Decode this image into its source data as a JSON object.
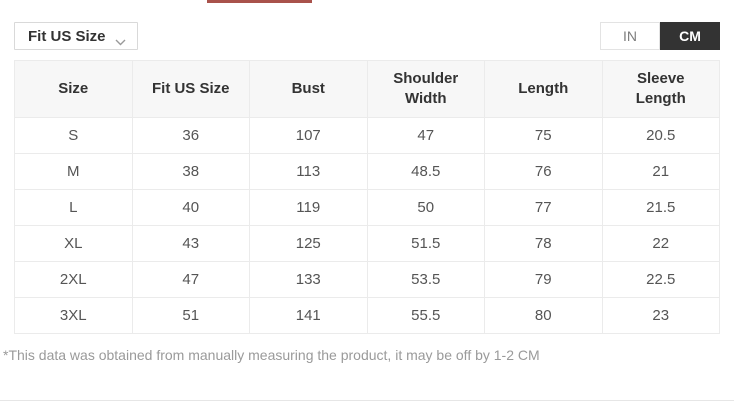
{
  "colors": {
    "tab_indicator": "#a9524b",
    "toggle_active_bg": "#333333",
    "header_bg": "#f7f7f7",
    "border": "#ebebeb"
  },
  "controls": {
    "size_dropdown": {
      "label": "Fit US Size"
    },
    "unit_toggle": {
      "options": [
        {
          "label": "IN",
          "active": false
        },
        {
          "label": "CM",
          "active": true
        }
      ]
    }
  },
  "table": {
    "columns": [
      "Size",
      "Fit US Size",
      "Bust",
      "Shoulder Width",
      "Length",
      "Sleeve Length"
    ],
    "rows": [
      [
        "S",
        "36",
        "107",
        "47",
        "75",
        "20.5"
      ],
      [
        "M",
        "38",
        "113",
        "48.5",
        "76",
        "21"
      ],
      [
        "L",
        "40",
        "119",
        "50",
        "77",
        "21.5"
      ],
      [
        "XL",
        "43",
        "125",
        "51.5",
        "78",
        "22"
      ],
      [
        "2XL",
        "47",
        "133",
        "53.5",
        "79",
        "22.5"
      ],
      [
        "3XL",
        "51",
        "141",
        "55.5",
        "80",
        "23"
      ]
    ]
  },
  "note": "*This data was obtained from manually measuring the product, it may be off by 1-2 CM"
}
